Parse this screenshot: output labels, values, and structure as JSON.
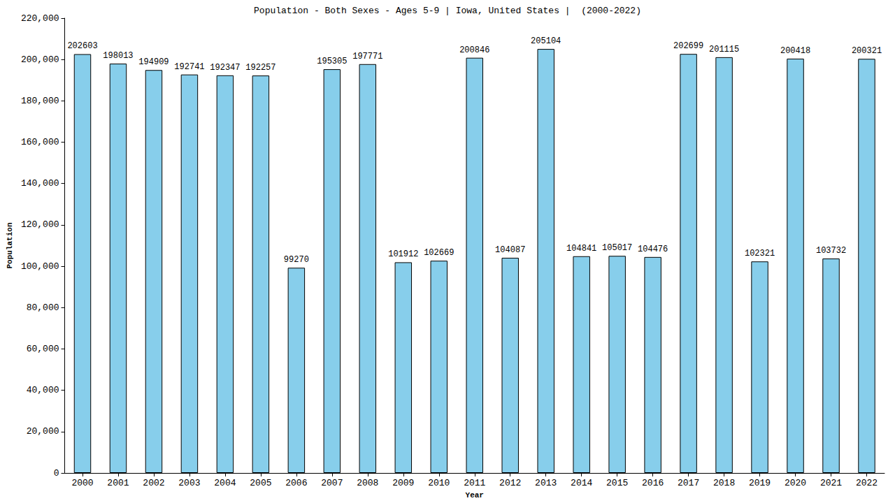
{
  "chart_data": {
    "type": "bar",
    "title": "Population - Both Sexes - Ages 5-9 | Iowa, United States |  (2000-2022)",
    "x_label": "Year",
    "y_label": "Population",
    "categories": [
      "2000",
      "2001",
      "2002",
      "2003",
      "2004",
      "2005",
      "2006",
      "2007",
      "2008",
      "2009",
      "2010",
      "2011",
      "2012",
      "2013",
      "2014",
      "2015",
      "2016",
      "2017",
      "2018",
      "2019",
      "2020",
      "2021",
      "2022"
    ],
    "values": [
      202603,
      198013,
      194909,
      192741,
      192347,
      192257,
      99270,
      195305,
      197771,
      101912,
      102669,
      200846,
      104087,
      205104,
      104841,
      105017,
      104476,
      202699,
      201115,
      102321,
      200418,
      103732,
      200321
    ],
    "color": "#87ceeb",
    "ylim": [
      0,
      220000
    ],
    "yticks": [
      0,
      20000,
      40000,
      60000,
      80000,
      100000,
      120000,
      140000,
      160000,
      180000,
      200000,
      220000
    ],
    "grid": false,
    "data_labels": true
  }
}
